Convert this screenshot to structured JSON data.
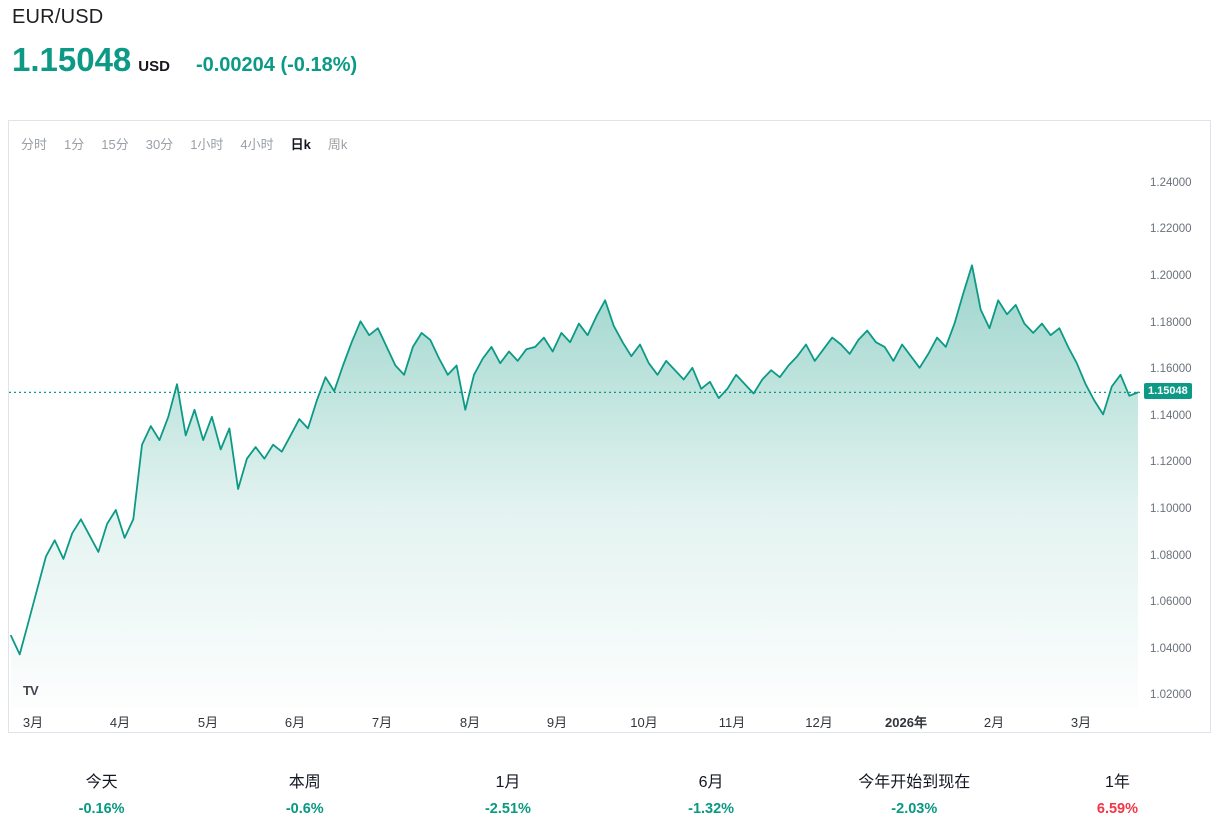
{
  "header": {
    "symbol": "EUR/USD",
    "price": "1.15048",
    "currency": "USD",
    "change": "-0.00204 (-0.18%)"
  },
  "timeframes": {
    "items": [
      {
        "label": "分时",
        "active": false
      },
      {
        "label": "1分",
        "active": false
      },
      {
        "label": "15分",
        "active": false
      },
      {
        "label": "30分",
        "active": false
      },
      {
        "label": "1小时",
        "active": false
      },
      {
        "label": "4小时",
        "active": false
      },
      {
        "label": "日k",
        "active": true
      },
      {
        "label": "周k",
        "active": false
      }
    ]
  },
  "chart_data": {
    "type": "area",
    "title": "EUR/USD",
    "series_name": "EUR/USD daily close",
    "x_labels": [
      "3月",
      "4月",
      "5月",
      "6月",
      "7月",
      "8月",
      "9月",
      "10月",
      "11月",
      "12月",
      "2026年",
      "2月",
      "3月"
    ],
    "y_axis_ticks": [
      "1.24000",
      "1.22000",
      "1.20000",
      "1.18000",
      "1.16000",
      "1.14000",
      "1.12000",
      "1.10000",
      "1.08000",
      "1.06000",
      "1.04000",
      "1.02000"
    ],
    "y_range": [
      1.015,
      1.2515
    ],
    "grid": "off",
    "legend": "none",
    "current_price": 1.15048,
    "current_price_label": "1.15048",
    "line_color": "#0c9a86",
    "values": [
      1.046,
      1.038,
      1.052,
      1.066,
      1.08,
      1.087,
      1.079,
      1.09,
      1.096,
      1.089,
      1.082,
      1.094,
      1.1,
      1.088,
      1.096,
      1.128,
      1.136,
      1.13,
      1.14,
      1.154,
      1.132,
      1.143,
      1.13,
      1.14,
      1.126,
      1.135,
      1.109,
      1.122,
      1.127,
      1.122,
      1.128,
      1.125,
      1.132,
      1.139,
      1.135,
      1.147,
      1.157,
      1.151,
      1.162,
      1.172,
      1.181,
      1.175,
      1.178,
      1.17,
      1.162,
      1.158,
      1.17,
      1.176,
      1.173,
      1.165,
      1.158,
      1.162,
      1.143,
      1.158,
      1.165,
      1.17,
      1.163,
      1.168,
      1.164,
      1.169,
      1.17,
      1.174,
      1.168,
      1.176,
      1.172,
      1.18,
      1.175,
      1.183,
      1.19,
      1.179,
      1.172,
      1.166,
      1.171,
      1.163,
      1.158,
      1.164,
      1.16,
      1.156,
      1.161,
      1.152,
      1.155,
      1.148,
      1.152,
      1.158,
      1.154,
      1.15,
      1.156,
      1.16,
      1.157,
      1.162,
      1.166,
      1.171,
      1.164,
      1.169,
      1.174,
      1.171,
      1.167,
      1.173,
      1.177,
      1.172,
      1.17,
      1.164,
      1.171,
      1.166,
      1.161,
      1.167,
      1.174,
      1.17,
      1.18,
      1.193,
      1.205,
      1.186,
      1.178,
      1.19,
      1.184,
      1.188,
      1.18,
      1.176,
      1.18,
      1.175,
      1.178,
      1.17,
      1.163,
      1.154,
      1.147,
      1.141,
      1.153,
      1.158,
      1.149,
      1.15048
    ]
  },
  "watermark": {
    "label": "TV"
  },
  "periods": [
    {
      "label": "今天",
      "value": "-0.16%",
      "direction": "down"
    },
    {
      "label": "本周",
      "value": "-0.6%",
      "direction": "down"
    },
    {
      "label": "1月",
      "value": "-2.51%",
      "direction": "down"
    },
    {
      "label": "6月",
      "value": "-1.32%",
      "direction": "down"
    },
    {
      "label": "今年开始到现在",
      "value": "-2.03%",
      "direction": "down"
    },
    {
      "label": "1年",
      "value": "6.59%",
      "direction": "up"
    }
  ],
  "colors": {
    "accent_teal": "#0c9a86",
    "down_green": "#089981",
    "up_red": "#f23645",
    "axis_gray": "#6a7179",
    "tab_gray": "#9aa0a6",
    "border": "#e0e3eb"
  }
}
